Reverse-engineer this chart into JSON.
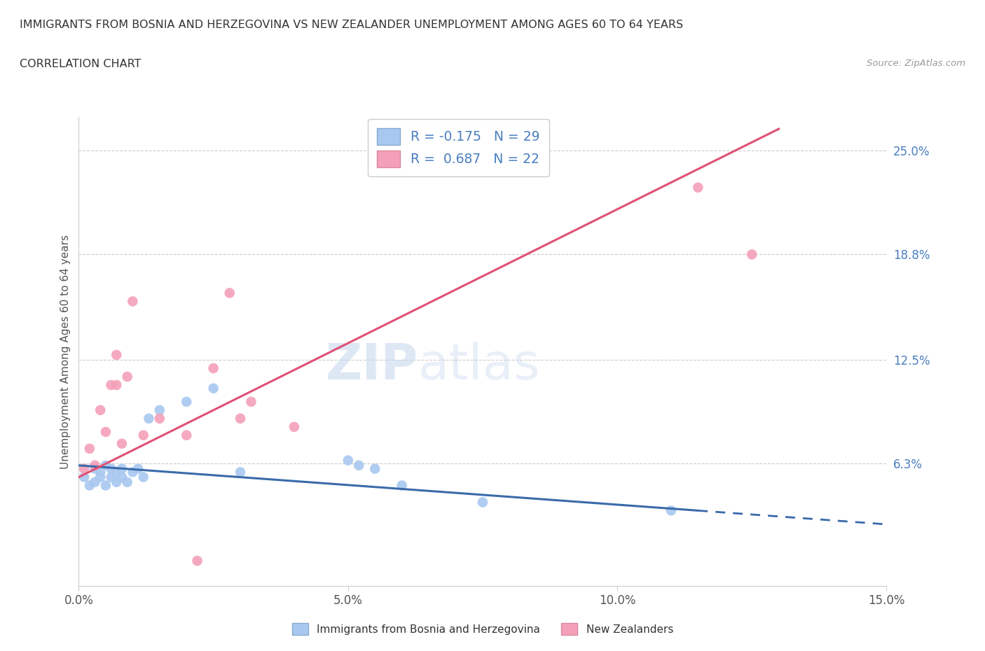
{
  "title_line1": "IMMIGRANTS FROM BOSNIA AND HERZEGOVINA VS NEW ZEALANDER UNEMPLOYMENT AMONG AGES 60 TO 64 YEARS",
  "title_line2": "CORRELATION CHART",
  "source_text": "Source: ZipAtlas.com",
  "ylabel": "Unemployment Among Ages 60 to 64 years",
  "xlim": [
    0.0,
    0.15
  ],
  "ylim": [
    -0.01,
    0.27
  ],
  "yticks": [
    0.063,
    0.125,
    0.188,
    0.25
  ],
  "ytick_labels": [
    "6.3%",
    "12.5%",
    "18.8%",
    "25.0%"
  ],
  "xticks": [
    0.0,
    0.05,
    0.1,
    0.15
  ],
  "xtick_labels": [
    "0.0%",
    "5.0%",
    "10.0%",
    "15.0%"
  ],
  "blue_R": -0.175,
  "blue_N": 29,
  "pink_R": 0.687,
  "pink_N": 22,
  "blue_color": "#a8c8f0",
  "pink_color": "#f4a0b8",
  "blue_line_color": "#3a6aaa",
  "pink_line_color": "#e05075",
  "legend_label_blue": "Immigrants from Bosnia and Herzegovina",
  "legend_label_pink": "New Zealanders",
  "watermark_zip": "ZIP",
  "watermark_atlas": "atlas",
  "blue_scatter_x": [
    0.001,
    0.002,
    0.003,
    0.003,
    0.004,
    0.004,
    0.005,
    0.005,
    0.006,
    0.006,
    0.007,
    0.007,
    0.008,
    0.008,
    0.009,
    0.01,
    0.011,
    0.012,
    0.013,
    0.015,
    0.02,
    0.025,
    0.03,
    0.05,
    0.052,
    0.055,
    0.06,
    0.075,
    0.11
  ],
  "blue_scatter_y": [
    0.055,
    0.05,
    0.06,
    0.052,
    0.058,
    0.055,
    0.062,
    0.05,
    0.06,
    0.055,
    0.052,
    0.058,
    0.055,
    0.06,
    0.052,
    0.058,
    0.06,
    0.055,
    0.09,
    0.095,
    0.1,
    0.108,
    0.058,
    0.065,
    0.062,
    0.06,
    0.05,
    0.04,
    0.035
  ],
  "pink_scatter_x": [
    0.001,
    0.002,
    0.003,
    0.004,
    0.005,
    0.006,
    0.007,
    0.007,
    0.008,
    0.009,
    0.01,
    0.012,
    0.015,
    0.02,
    0.022,
    0.025,
    0.028,
    0.03,
    0.032,
    0.04,
    0.115,
    0.125
  ],
  "pink_scatter_y": [
    0.06,
    0.072,
    0.062,
    0.095,
    0.082,
    0.11,
    0.11,
    0.128,
    0.075,
    0.115,
    0.16,
    0.08,
    0.09,
    0.08,
    0.005,
    0.12,
    0.165,
    0.09,
    0.1,
    0.085,
    0.228,
    0.188
  ],
  "blue_line_x0": 0.0,
  "blue_line_y0": 0.062,
  "blue_line_x1": 0.115,
  "blue_line_y1": 0.035,
  "pink_line_x0": 0.0,
  "pink_line_y0": 0.055,
  "pink_line_x1": 0.13,
  "pink_line_y1": 0.263
}
